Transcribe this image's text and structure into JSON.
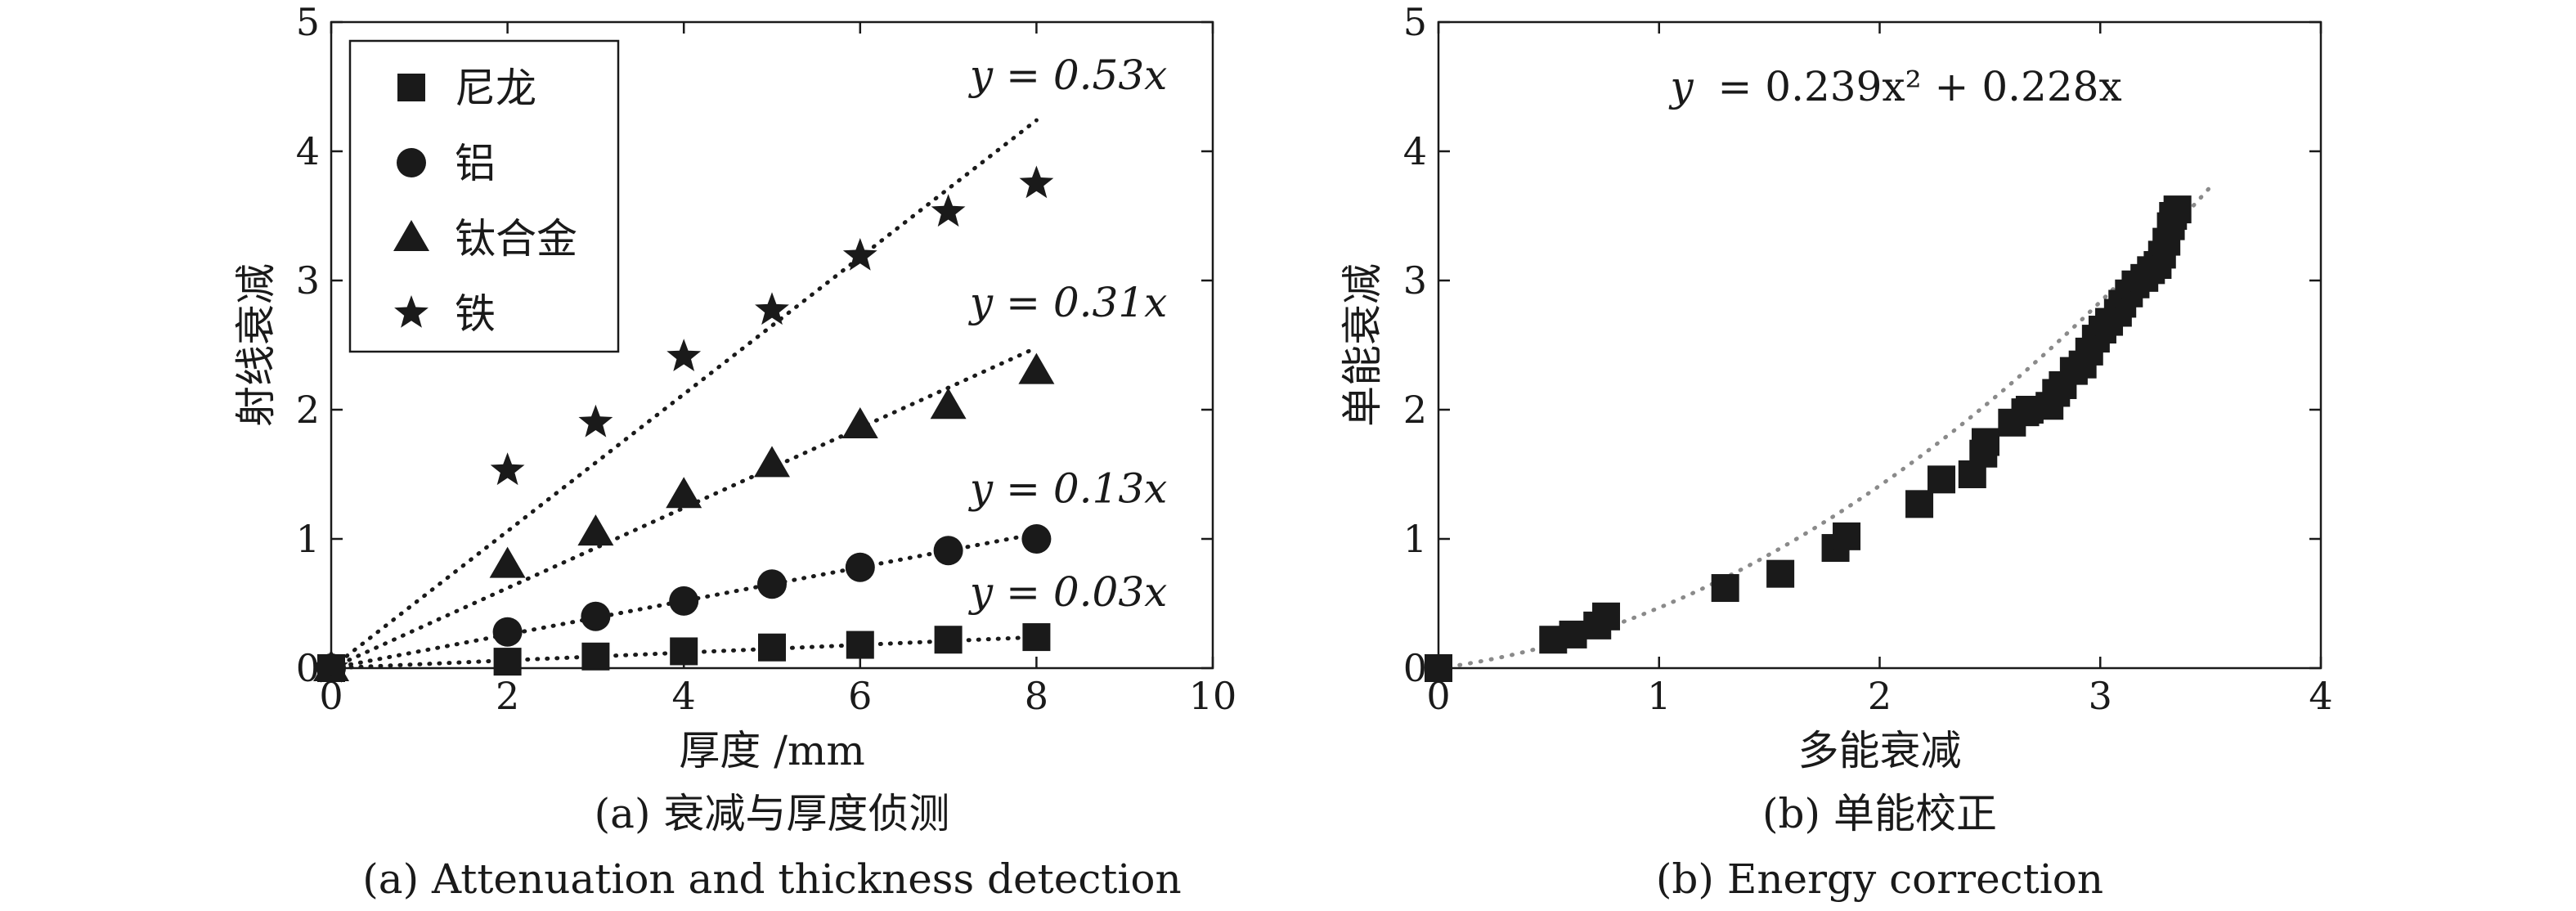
{
  "chart_data": [
    {
      "type": "scatter",
      "panel": "a",
      "caption_cn": "(a) 衰减与厚度侦测",
      "caption_en": "(a) Attenuation and thickness detection",
      "xlabel": "厚度 /mm",
      "ylabel": "射线衰减",
      "xlim": [
        0,
        10
      ],
      "ylim": [
        0,
        5
      ],
      "xticks": [
        0,
        2,
        4,
        6,
        8,
        10
      ],
      "yticks": [
        0,
        1,
        2,
        3,
        4,
        5
      ],
      "legend_position": "top-left",
      "series": [
        {
          "name": "尼龙",
          "marker": "square",
          "x": [
            0,
            2,
            3,
            4,
            5,
            6,
            7,
            8
          ],
          "y": [
            0,
            0.05,
            0.09,
            0.13,
            0.16,
            0.18,
            0.22,
            0.24
          ],
          "fit_slope": 0.03,
          "fit_label": "y = 0.03x"
        },
        {
          "name": "铝",
          "marker": "circle",
          "x": [
            0,
            2,
            3,
            4,
            5,
            6,
            7,
            8
          ],
          "y": [
            0,
            0.28,
            0.4,
            0.52,
            0.65,
            0.78,
            0.91,
            1.0
          ],
          "fit_slope": 0.13,
          "fit_label": "y = 0.13x"
        },
        {
          "name": "钛合金",
          "marker": "triangle",
          "x": [
            0,
            2,
            3,
            4,
            5,
            6,
            7,
            8
          ],
          "y": [
            0,
            0.8,
            1.05,
            1.34,
            1.58,
            1.88,
            2.03,
            2.3
          ],
          "fit_slope": 0.31,
          "fit_label": "y = 0.31x"
        },
        {
          "name": "铁",
          "marker": "star",
          "x": [
            0,
            2,
            3,
            4,
            5,
            6,
            7,
            8
          ],
          "y": [
            0,
            1.53,
            1.9,
            2.41,
            2.77,
            3.19,
            3.53,
            3.75
          ],
          "fit_slope": 0.53,
          "fit_label": "y = 0.53x"
        }
      ],
      "fit_style": "dotted black lines from origin to x = 8"
    },
    {
      "type": "scatter",
      "panel": "b",
      "caption_cn": "(b) 单能校正",
      "caption_en": "(b) Energy correction",
      "xlabel": "多能衰减",
      "ylabel": "单能衰减",
      "xlim": [
        0,
        4
      ],
      "ylim": [
        0,
        5
      ],
      "xticks": [
        0,
        1,
        2,
        3,
        4
      ],
      "yticks": [
        0,
        1,
        2,
        3,
        4,
        5
      ],
      "marker": "square",
      "points": [
        [
          0,
          0
        ],
        [
          0.52,
          0.22
        ],
        [
          0.61,
          0.26
        ],
        [
          0.72,
          0.33
        ],
        [
          0.76,
          0.4
        ],
        [
          1.3,
          0.62
        ],
        [
          1.55,
          0.73
        ],
        [
          1.8,
          0.93
        ],
        [
          1.85,
          1.02
        ],
        [
          2.18,
          1.27
        ],
        [
          2.28,
          1.46
        ],
        [
          2.42,
          1.5
        ],
        [
          2.47,
          1.66
        ],
        [
          2.48,
          1.75
        ],
        [
          2.6,
          1.9
        ],
        [
          2.66,
          1.98
        ],
        [
          2.68,
          2.0
        ],
        [
          2.77,
          2.03
        ],
        [
          2.8,
          2.13
        ],
        [
          2.83,
          2.19
        ],
        [
          2.88,
          2.3
        ],
        [
          2.92,
          2.35
        ],
        [
          2.95,
          2.45
        ],
        [
          2.98,
          2.55
        ],
        [
          3.01,
          2.62
        ],
        [
          3.04,
          2.68
        ],
        [
          3.08,
          2.75
        ],
        [
          3.1,
          2.82
        ],
        [
          3.13,
          2.9
        ],
        [
          3.16,
          2.97
        ],
        [
          3.2,
          3.02
        ],
        [
          3.23,
          3.08
        ],
        [
          3.26,
          3.12
        ],
        [
          3.28,
          3.2
        ],
        [
          3.3,
          3.3
        ],
        [
          3.32,
          3.42
        ],
        [
          3.33,
          3.5
        ],
        [
          3.35,
          3.55
        ]
      ],
      "fit": {
        "a": 0.239,
        "b": 0.228,
        "label_lhs": "y",
        "label_rhs": "= 0.239x² + 0.228x",
        "xrange": [
          0,
          3.5
        ],
        "style": "dotted grey"
      }
    }
  ]
}
